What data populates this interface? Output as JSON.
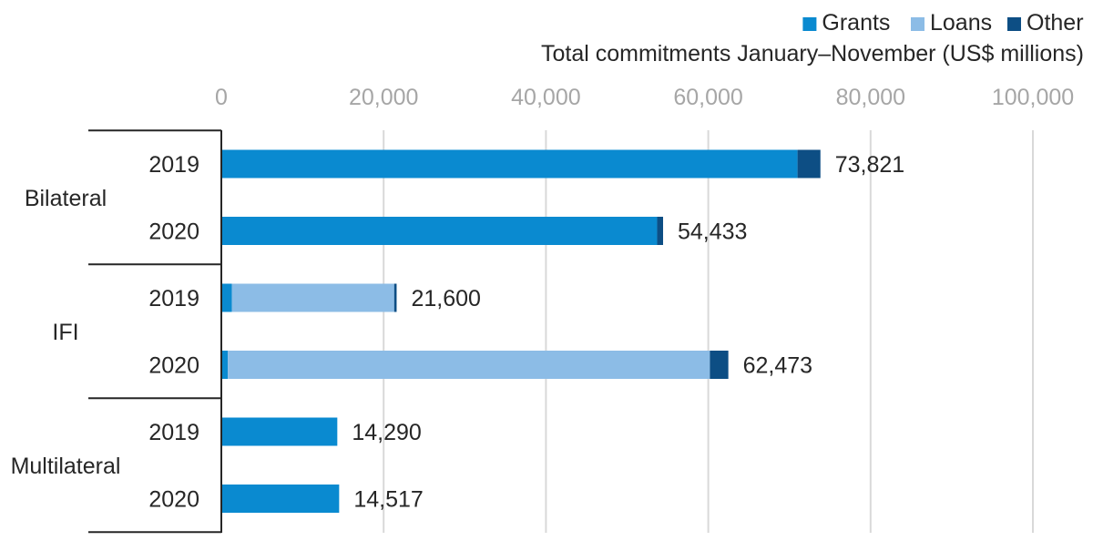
{
  "chart_data": {
    "type": "bar",
    "orientation": "horizontal",
    "stacked": true,
    "title": "",
    "xlabel": "Total commitments January–November (US$ millions)",
    "ylabel": "",
    "xlim": [
      0,
      100000
    ],
    "x_ticks": [
      0,
      20000,
      40000,
      60000,
      80000,
      100000
    ],
    "x_tick_labels": [
      "0",
      "20,000",
      "40,000",
      "60,000",
      "80,000",
      "100,000"
    ],
    "x_axis_position": "top",
    "grid": "vertical",
    "legend": {
      "placement": "top-right",
      "entries": [
        "Grants",
        "Loans",
        "Other"
      ]
    },
    "groups": [
      {
        "label": "Bilateral",
        "categories": [
          "2019",
          "2020"
        ]
      },
      {
        "label": "IFI",
        "categories": [
          "2019",
          "2020"
        ]
      },
      {
        "label": "Multilateral",
        "categories": [
          "2019",
          "2020"
        ]
      }
    ],
    "categories": [
      "Bilateral 2019",
      "Bilateral 2020",
      "IFI 2019",
      "IFI 2020",
      "Multilateral 2019",
      "Multilateral 2020"
    ],
    "series": [
      {
        "name": "Grants",
        "color": "#0a8ad0",
        "values": [
          71000,
          53700,
          1300,
          800,
          14290,
          14517
        ]
      },
      {
        "name": "Loans",
        "color": "#8cbce6",
        "values": [
          0,
          0,
          20000,
          59400,
          0,
          0
        ]
      },
      {
        "name": "Other",
        "color": "#0d4e84",
        "values": [
          2821,
          733,
          300,
          2273,
          0,
          0
        ]
      }
    ],
    "totals": [
      73821,
      54433,
      21600,
      62473,
      14290,
      14517
    ],
    "total_labels": [
      "73,821",
      "54,433",
      "21,600",
      "62,473",
      "14,290",
      "14,517"
    ]
  }
}
